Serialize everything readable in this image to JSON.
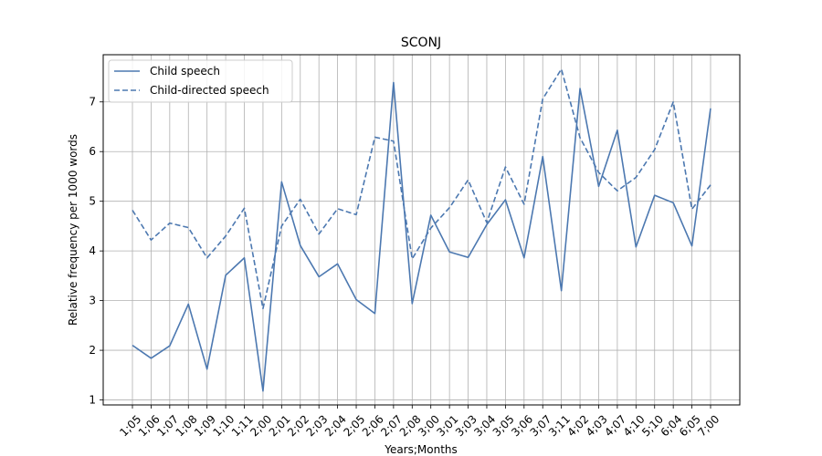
{
  "chart_data": {
    "type": "line",
    "title": "SCONJ",
    "xlabel": "Years;Months",
    "ylabel": "Relative frequency per 1000 words",
    "ylim": [
      0.9,
      7.95
    ],
    "yticks": [
      1,
      2,
      3,
      4,
      5,
      6,
      7
    ],
    "grid": true,
    "legend_position": "top-left",
    "categories": [
      "1;05",
      "1;06",
      "1;07",
      "1;08",
      "1;09",
      "1;10",
      "1;11",
      "2;00",
      "2;01",
      "2;02",
      "2;03",
      "2;04",
      "2;05",
      "2;06",
      "2;07",
      "2;08",
      "3;00",
      "3;01",
      "3;03",
      "3;04",
      "3;05",
      "3;06",
      "3;07",
      "3;11",
      "4;02",
      "4;03",
      "4;07",
      "4;10",
      "5;10",
      "6;04",
      "6;05",
      "7;00"
    ],
    "series": [
      {
        "name": "Child speech",
        "style": "solid",
        "color": "#4c78b0",
        "values": [
          2.1,
          1.84,
          2.09,
          2.93,
          1.62,
          3.51,
          3.86,
          1.18,
          5.39,
          4.11,
          3.48,
          3.74,
          3.02,
          2.74,
          7.39,
          2.94,
          4.72,
          3.98,
          3.87,
          4.53,
          5.03,
          3.86,
          5.9,
          3.2,
          7.27,
          5.3,
          6.43,
          4.08,
          5.12,
          4.97,
          4.1,
          6.87
        ]
      },
      {
        "name": "Child-directed speech",
        "style": "dashed",
        "color": "#4c78b0",
        "values": [
          4.82,
          4.22,
          4.56,
          4.47,
          3.86,
          4.3,
          4.86,
          2.84,
          4.5,
          5.04,
          4.34,
          4.85,
          4.73,
          6.29,
          6.21,
          3.84,
          4.46,
          4.87,
          5.43,
          4.57,
          5.69,
          4.94,
          7.06,
          7.66,
          6.28,
          5.58,
          5.21,
          5.48,
          6.04,
          7.0,
          4.84,
          5.33
        ]
      }
    ]
  }
}
